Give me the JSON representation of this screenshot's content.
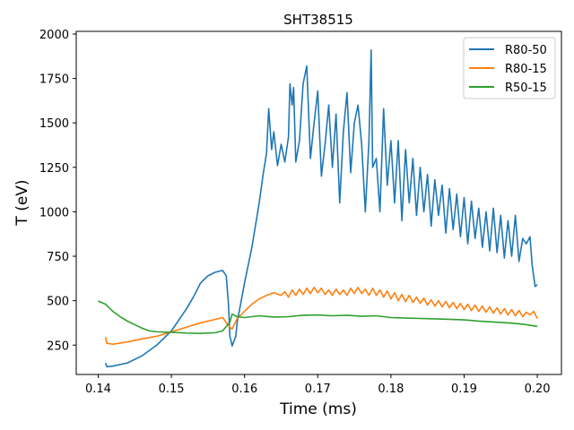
{
  "chart_data": {
    "type": "line",
    "title": "SHT38515",
    "xlabel": "Time (ms)",
    "ylabel": "T (eV)",
    "xlim": [
      0.137,
      0.2033
    ],
    "ylim": [
      85,
      2015
    ],
    "xticks": [
      0.14,
      0.15,
      0.16,
      0.17,
      0.18,
      0.19,
      0.2
    ],
    "xtick_labels": [
      "0.14",
      "0.15",
      "0.16",
      "0.17",
      "0.18",
      "0.19",
      "0.20"
    ],
    "yticks": [
      250,
      500,
      750,
      1000,
      1250,
      1500,
      1750,
      2000
    ],
    "ytick_labels": [
      "250",
      "500",
      "750",
      "1000",
      "1250",
      "1500",
      "1750",
      "2000"
    ],
    "grid": false,
    "legend_position": "top-right",
    "series": [
      {
        "name": "R80-50",
        "color": "#1f77b4",
        "points": [
          [
            0.141,
            150
          ],
          [
            0.1412,
            128
          ],
          [
            0.142,
            132
          ],
          [
            0.144,
            150
          ],
          [
            0.146,
            190
          ],
          [
            0.148,
            250
          ],
          [
            0.15,
            330
          ],
          [
            0.152,
            450
          ],
          [
            0.153,
            520
          ],
          [
            0.154,
            600
          ],
          [
            0.155,
            640
          ],
          [
            0.156,
            660
          ],
          [
            0.157,
            670
          ],
          [
            0.1575,
            640
          ],
          [
            0.1578,
            480
          ],
          [
            0.158,
            300
          ],
          [
            0.1583,
            245
          ],
          [
            0.1588,
            300
          ],
          [
            0.159,
            380
          ],
          [
            0.16,
            600
          ],
          [
            0.161,
            800
          ],
          [
            0.162,
            1050
          ],
          [
            0.1625,
            1200
          ],
          [
            0.163,
            1330
          ],
          [
            0.1633,
            1580
          ],
          [
            0.1637,
            1350
          ],
          [
            0.164,
            1450
          ],
          [
            0.1645,
            1260
          ],
          [
            0.165,
            1380
          ],
          [
            0.1655,
            1280
          ],
          [
            0.166,
            1420
          ],
          [
            0.1662,
            1720
          ],
          [
            0.1665,
            1600
          ],
          [
            0.1667,
            1700
          ],
          [
            0.167,
            1280
          ],
          [
            0.1675,
            1400
          ],
          [
            0.168,
            1720
          ],
          [
            0.1685,
            1820
          ],
          [
            0.169,
            1300
          ],
          [
            0.1695,
            1500
          ],
          [
            0.17,
            1680
          ],
          [
            0.1705,
            1200
          ],
          [
            0.171,
            1380
          ],
          [
            0.1715,
            1600
          ],
          [
            0.172,
            1250
          ],
          [
            0.1725,
            1550
          ],
          [
            0.173,
            1050
          ],
          [
            0.1735,
            1450
          ],
          [
            0.174,
            1670
          ],
          [
            0.1745,
            1220
          ],
          [
            0.175,
            1500
          ],
          [
            0.1755,
            1600
          ],
          [
            0.176,
            1380
          ],
          [
            0.1765,
            1000
          ],
          [
            0.177,
            1400
          ],
          [
            0.1773,
            1910
          ],
          [
            0.1775,
            1250
          ],
          [
            0.178,
            1300
          ],
          [
            0.1785,
            1000
          ],
          [
            0.179,
            1580
          ],
          [
            0.1795,
            1150
          ],
          [
            0.18,
            1400
          ],
          [
            0.1805,
            1050
          ],
          [
            0.181,
            1400
          ],
          [
            0.1815,
            950
          ],
          [
            0.182,
            1350
          ],
          [
            0.1825,
            1050
          ],
          [
            0.183,
            1300
          ],
          [
            0.1835,
            980
          ],
          [
            0.184,
            1250
          ],
          [
            0.1845,
            1000
          ],
          [
            0.185,
            1210
          ],
          [
            0.1855,
            920
          ],
          [
            0.186,
            1180
          ],
          [
            0.1865,
            980
          ],
          [
            0.187,
            1150
          ],
          [
            0.1875,
            880
          ],
          [
            0.188,
            1130
          ],
          [
            0.1885,
            900
          ],
          [
            0.189,
            1100
          ],
          [
            0.1895,
            860
          ],
          [
            0.19,
            1080
          ],
          [
            0.1905,
            820
          ],
          [
            0.191,
            1060
          ],
          [
            0.1915,
            850
          ],
          [
            0.192,
            1020
          ],
          [
            0.1925,
            800
          ],
          [
            0.193,
            1000
          ],
          [
            0.1935,
            780
          ],
          [
            0.194,
            1020
          ],
          [
            0.1945,
            770
          ],
          [
            0.195,
            980
          ],
          [
            0.1955,
            740
          ],
          [
            0.196,
            950
          ],
          [
            0.1965,
            750
          ],
          [
            0.197,
            980
          ],
          [
            0.1975,
            720
          ],
          [
            0.198,
            850
          ],
          [
            0.1985,
            820
          ],
          [
            0.199,
            860
          ],
          [
            0.1993,
            700
          ],
          [
            0.1997,
            580
          ],
          [
            0.2,
            590
          ]
        ]
      },
      {
        "name": "R80-15",
        "color": "#ff7f0e",
        "points": [
          [
            0.141,
            295
          ],
          [
            0.1412,
            260
          ],
          [
            0.142,
            255
          ],
          [
            0.144,
            268
          ],
          [
            0.146,
            285
          ],
          [
            0.148,
            300
          ],
          [
            0.15,
            325
          ],
          [
            0.152,
            350
          ],
          [
            0.154,
            375
          ],
          [
            0.156,
            395
          ],
          [
            0.157,
            405
          ],
          [
            0.158,
            350
          ],
          [
            0.1583,
            340
          ],
          [
            0.159,
            400
          ],
          [
            0.16,
            440
          ],
          [
            0.161,
            480
          ],
          [
            0.162,
            510
          ],
          [
            0.163,
            530
          ],
          [
            0.164,
            545
          ],
          [
            0.165,
            530
          ],
          [
            0.1655,
            550
          ],
          [
            0.166,
            520
          ],
          [
            0.1665,
            560
          ],
          [
            0.167,
            530
          ],
          [
            0.1675,
            565
          ],
          [
            0.168,
            535
          ],
          [
            0.1685,
            570
          ],
          [
            0.169,
            540
          ],
          [
            0.1695,
            575
          ],
          [
            0.17,
            545
          ],
          [
            0.1705,
            570
          ],
          [
            0.171,
            535
          ],
          [
            0.1715,
            560
          ],
          [
            0.172,
            530
          ],
          [
            0.1725,
            565
          ],
          [
            0.173,
            535
          ],
          [
            0.1735,
            560
          ],
          [
            0.174,
            530
          ],
          [
            0.1745,
            570
          ],
          [
            0.175,
            540
          ],
          [
            0.1755,
            575
          ],
          [
            0.176,
            540
          ],
          [
            0.1765,
            565
          ],
          [
            0.177,
            530
          ],
          [
            0.1775,
            570
          ],
          [
            0.178,
            530
          ],
          [
            0.1785,
            560
          ],
          [
            0.179,
            520
          ],
          [
            0.1795,
            555
          ],
          [
            0.18,
            510
          ],
          [
            0.1805,
            545
          ],
          [
            0.181,
            500
          ],
          [
            0.1815,
            535
          ],
          [
            0.182,
            495
          ],
          [
            0.1825,
            530
          ],
          [
            0.183,
            490
          ],
          [
            0.1835,
            520
          ],
          [
            0.184,
            485
          ],
          [
            0.1845,
            515
          ],
          [
            0.185,
            475
          ],
          [
            0.1855,
            505
          ],
          [
            0.186,
            470
          ],
          [
            0.1865,
            500
          ],
          [
            0.187,
            465
          ],
          [
            0.1875,
            495
          ],
          [
            0.188,
            460
          ],
          [
            0.1885,
            490
          ],
          [
            0.189,
            455
          ],
          [
            0.1895,
            485
          ],
          [
            0.19,
            450
          ],
          [
            0.1905,
            480
          ],
          [
            0.191,
            445
          ],
          [
            0.1915,
            475
          ],
          [
            0.192,
            440
          ],
          [
            0.1925,
            470
          ],
          [
            0.193,
            435
          ],
          [
            0.1935,
            465
          ],
          [
            0.194,
            430
          ],
          [
            0.1945,
            460
          ],
          [
            0.195,
            425
          ],
          [
            0.1955,
            455
          ],
          [
            0.196,
            420
          ],
          [
            0.1965,
            450
          ],
          [
            0.197,
            415
          ],
          [
            0.1975,
            445
          ],
          [
            0.198,
            410
          ],
          [
            0.1985,
            435
          ],
          [
            0.199,
            420
          ],
          [
            0.1995,
            440
          ],
          [
            0.2,
            400
          ]
        ]
      },
      {
        "name": "R50-15",
        "color": "#2ca02c",
        "points": [
          [
            0.14,
            498
          ],
          [
            0.141,
            480
          ],
          [
            0.142,
            440
          ],
          [
            0.143,
            410
          ],
          [
            0.144,
            385
          ],
          [
            0.145,
            365
          ],
          [
            0.146,
            345
          ],
          [
            0.147,
            330
          ],
          [
            0.148,
            325
          ],
          [
            0.15,
            322
          ],
          [
            0.152,
            318
          ],
          [
            0.154,
            316
          ],
          [
            0.156,
            320
          ],
          [
            0.157,
            330
          ],
          [
            0.158,
            380
          ],
          [
            0.1583,
            425
          ],
          [
            0.159,
            410
          ],
          [
            0.16,
            405
          ],
          [
            0.162,
            415
          ],
          [
            0.164,
            408
          ],
          [
            0.166,
            410
          ],
          [
            0.168,
            418
          ],
          [
            0.17,
            420
          ],
          [
            0.172,
            415
          ],
          [
            0.174,
            418
          ],
          [
            0.176,
            412
          ],
          [
            0.178,
            415
          ],
          [
            0.18,
            405
          ],
          [
            0.182,
            402
          ],
          [
            0.184,
            400
          ],
          [
            0.186,
            398
          ],
          [
            0.188,
            395
          ],
          [
            0.19,
            392
          ],
          [
            0.192,
            385
          ],
          [
            0.194,
            380
          ],
          [
            0.196,
            375
          ],
          [
            0.198,
            368
          ],
          [
            0.199,
            362
          ],
          [
            0.2,
            355
          ]
        ]
      }
    ]
  }
}
